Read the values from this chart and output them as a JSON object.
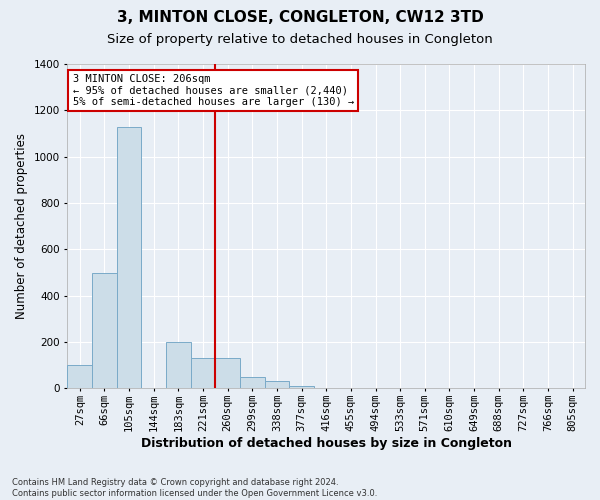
{
  "title": "3, MINTON CLOSE, CONGLETON, CW12 3TD",
  "subtitle": "Size of property relative to detached houses in Congleton",
  "xlabel": "Distribution of detached houses by size in Congleton",
  "ylabel": "Number of detached properties",
  "footnote": "Contains HM Land Registry data © Crown copyright and database right 2024.\nContains public sector information licensed under the Open Government Licence v3.0.",
  "bin_labels": [
    "27sqm",
    "66sqm",
    "105sqm",
    "144sqm",
    "183sqm",
    "221sqm",
    "260sqm",
    "299sqm",
    "338sqm",
    "377sqm",
    "416sqm",
    "455sqm",
    "494sqm",
    "533sqm",
    "571sqm",
    "610sqm",
    "649sqm",
    "688sqm",
    "727sqm",
    "766sqm",
    "805sqm"
  ],
  "bar_values": [
    100,
    500,
    1130,
    0,
    200,
    133,
    133,
    50,
    30,
    10,
    0,
    0,
    0,
    0,
    0,
    0,
    0,
    0,
    0,
    0,
    0
  ],
  "bar_color": "#ccdde8",
  "bar_edge_color": "#7aaac8",
  "red_line_x": 5.5,
  "annotation_text": "3 MINTON CLOSE: 206sqm\n← 95% of detached houses are smaller (2,440)\n5% of semi-detached houses are larger (130) →",
  "annotation_box_facecolor": "#ffffff",
  "annotation_box_edgecolor": "#cc0000",
  "ylim": [
    0,
    1400
  ],
  "yticks": [
    0,
    200,
    400,
    600,
    800,
    1000,
    1200,
    1400
  ],
  "background_color": "#e8eef5",
  "grid_color": "#ffffff",
  "title_fontsize": 11,
  "subtitle_fontsize": 9.5,
  "xlabel_fontsize": 9,
  "ylabel_fontsize": 8.5,
  "tick_fontsize": 7.5,
  "footnote_fontsize": 6
}
